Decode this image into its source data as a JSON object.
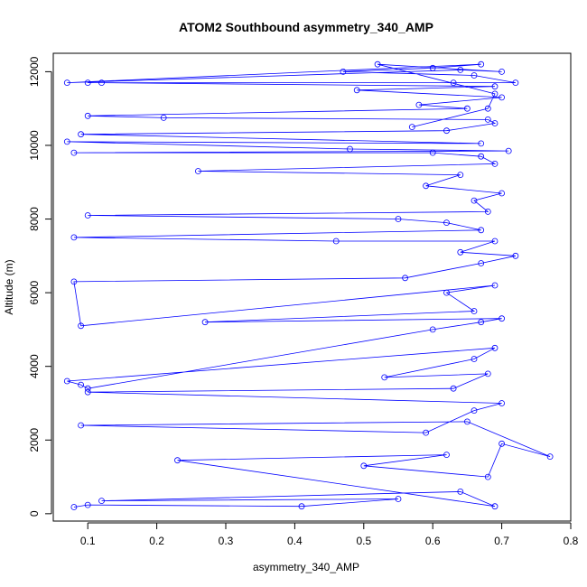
{
  "chart_data": {
    "type": "line",
    "title": "ATOM2 Southbound asymmetry_340_AMP",
    "xlabel": "asymmetry_340_AMP",
    "ylabel": "Altitude (m)",
    "xlim": [
      0.05,
      0.8
    ],
    "ylim": [
      -200,
      12500
    ],
    "x_ticks": [
      0.1,
      0.2,
      0.3,
      0.4,
      0.5,
      0.6,
      0.7,
      0.8
    ],
    "x_tick_labels": [
      "0.1",
      "0.2",
      "0.3",
      "0.4",
      "0.5",
      "0.6",
      "0.7",
      "0.8"
    ],
    "y_ticks": [
      0,
      2000,
      4000,
      6000,
      8000,
      10000,
      12000
    ],
    "y_tick_labels": [
      "0",
      "2000",
      "4000",
      "6000",
      "8000",
      "10000",
      "12000"
    ],
    "marker": "open-circle",
    "grid": false,
    "series_color": "#0000ff",
    "series": [
      {
        "x": [
          0.08,
          0.1,
          0.41,
          0.55,
          0.12,
          0.64,
          0.69,
          0.23,
          0.62,
          0.5,
          0.68,
          0.7,
          0.77,
          0.65,
          0.09,
          0.59,
          0.66,
          0.7,
          0.1,
          0.63,
          0.68,
          0.53,
          0.66,
          0.69,
          0.07,
          0.09,
          0.1,
          0.6,
          0.67,
          0.7,
          0.27,
          0.66,
          0.62,
          0.69,
          0.09,
          0.08,
          0.56,
          0.67,
          0.72,
          0.64,
          0.69,
          0.46,
          0.08,
          0.67,
          0.62,
          0.55,
          0.1,
          0.68,
          0.66,
          0.7,
          0.59,
          0.64,
          0.26,
          0.69,
          0.67,
          0.6,
          0.08,
          0.71,
          0.48,
          0.07,
          0.67,
          0.09,
          0.62,
          0.69,
          0.68,
          0.21,
          0.1,
          0.65,
          0.58,
          0.7,
          0.49,
          0.69,
          0.12,
          0.63,
          0.1,
          0.72,
          0.66,
          0.47,
          0.6,
          0.67,
          0.07,
          0.64,
          0.7,
          0.52,
          0.69,
          0.68,
          0.57
        ],
        "y": [
          180,
          240,
          200,
          400,
          350,
          600,
          200,
          1450,
          1600,
          1300,
          1000,
          1900,
          1550,
          2500,
          2400,
          2200,
          2800,
          3000,
          3300,
          3400,
          3800,
          3700,
          4200,
          4500,
          3600,
          3500,
          3400,
          5000,
          5200,
          5300,
          5200,
          5500,
          6000,
          6200,
          5100,
          6300,
          6400,
          6800,
          7000,
          7100,
          7400,
          7400,
          7500,
          7700,
          7900,
          8000,
          8100,
          8200,
          8500,
          8700,
          8900,
          9200,
          9300,
          9500,
          9700,
          9800,
          9800,
          9850,
          9900,
          10100,
          10050,
          10300,
          10400,
          10600,
          10700,
          10750,
          10800,
          11000,
          11100,
          11300,
          11500,
          11600,
          11700,
          11700,
          11700,
          11700,
          11900,
          12000,
          12100,
          12200,
          11700,
          12050,
          12000,
          12200,
          11400,
          11000,
          10500
        ]
      }
    ]
  }
}
